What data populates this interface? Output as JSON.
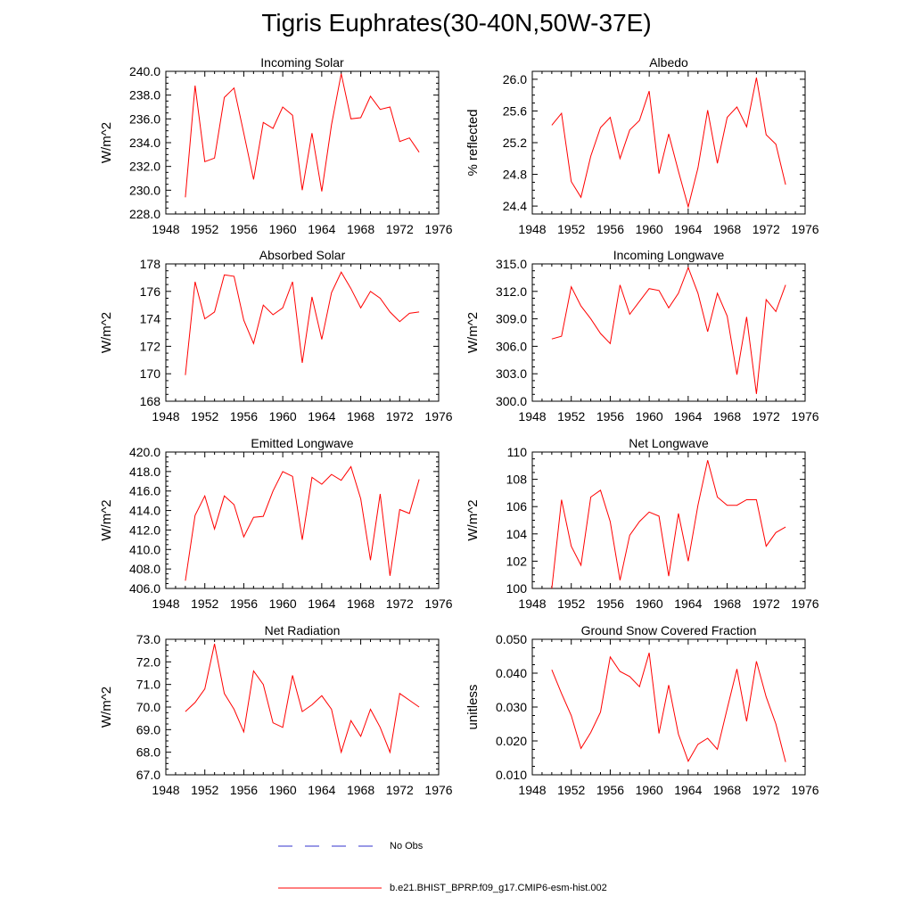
{
  "title": "Tigris Euphrates(30-40N,50W-37E)",
  "legend": {
    "obs_label": "No Obs",
    "obs_color": "#3333cc",
    "model_label": "b.e21.BHIST_BPRP.f09_g17.CMIP6-esm-hist.002",
    "model_color": "#ff0000"
  },
  "chart_data": [
    {
      "type": "line",
      "title": "Incoming Solar",
      "ylabel": "W/m^2",
      "xlim": [
        1948,
        1976
      ],
      "xticks": [
        "1948",
        "1952",
        "1956",
        "1960",
        "1964",
        "1968",
        "1972",
        "1976"
      ],
      "ylim": [
        228,
        240
      ],
      "yticks": [
        "228.0",
        "230.0",
        "232.0",
        "234.0",
        "236.0",
        "238.0",
        "240.0"
      ],
      "x": [
        1950,
        1951,
        1952,
        1953,
        1954,
        1955,
        1956,
        1957,
        1958,
        1959,
        1960,
        1961,
        1962,
        1963,
        1964,
        1965,
        1966,
        1967,
        1968,
        1969,
        1970,
        1971,
        1972,
        1973,
        1974
      ],
      "series": [
        {
          "values": [
            229.4,
            238.8,
            232.4,
            232.7,
            237.8,
            238.6,
            234.8,
            230.9,
            235.7,
            235.2,
            237.0,
            236.3,
            230.0,
            234.8,
            229.9,
            235.5,
            239.8,
            236.0,
            236.1,
            237.9,
            236.8,
            237.0,
            234.1,
            234.4,
            233.2
          ]
        }
      ]
    },
    {
      "type": "line",
      "title": "Albedo",
      "ylabel": "% reflected",
      "xlim": [
        1948,
        1976
      ],
      "xticks": [
        "1948",
        "1952",
        "1956",
        "1960",
        "1964",
        "1968",
        "1972",
        "1976"
      ],
      "ylim": [
        24.3,
        26.1
      ],
      "yticks": [
        "24.4",
        "24.8",
        "25.2",
        "25.6",
        "26.0"
      ],
      "ytick_values": [
        24.4,
        24.8,
        25.2,
        25.6,
        26.0
      ],
      "x": [
        1950,
        1951,
        1952,
        1953,
        1954,
        1955,
        1956,
        1957,
        1958,
        1959,
        1960,
        1961,
        1962,
        1963,
        1964,
        1965,
        1966,
        1967,
        1968,
        1969,
        1970,
        1971,
        1972,
        1973,
        1974
      ],
      "series": [
        {
          "values": [
            25.42,
            25.57,
            24.71,
            24.51,
            25.03,
            25.39,
            25.52,
            25.0,
            25.36,
            25.48,
            25.85,
            24.81,
            25.31,
            24.84,
            24.39,
            24.88,
            25.61,
            24.94,
            25.52,
            25.65,
            25.4,
            26.02,
            25.3,
            25.18,
            24.67
          ]
        }
      ]
    },
    {
      "type": "line",
      "title": "Absorbed Solar",
      "ylabel": "W/m^2",
      "xlim": [
        1948,
        1976
      ],
      "xticks": [
        "1948",
        "1952",
        "1956",
        "1960",
        "1964",
        "1968",
        "1972",
        "1976"
      ],
      "ylim": [
        168,
        178
      ],
      "yticks": [
        "168",
        "170",
        "172",
        "174",
        "176",
        "178"
      ],
      "x": [
        1950,
        1951,
        1952,
        1953,
        1954,
        1955,
        1956,
        1957,
        1958,
        1959,
        1960,
        1961,
        1962,
        1963,
        1964,
        1965,
        1966,
        1967,
        1968,
        1969,
        1970,
        1971,
        1972,
        1973,
        1974
      ],
      "series": [
        {
          "values": [
            169.9,
            176.7,
            174.0,
            174.5,
            177.2,
            177.1,
            173.9,
            172.2,
            175.0,
            174.3,
            174.8,
            176.7,
            170.8,
            175.6,
            172.5,
            175.9,
            177.4,
            176.2,
            174.8,
            176.0,
            175.5,
            174.5,
            173.8,
            174.4,
            174.5
          ]
        }
      ]
    },
    {
      "type": "line",
      "title": "Incoming Longwave",
      "ylabel": "W/m^2",
      "xlim": [
        1948,
        1976
      ],
      "xticks": [
        "1948",
        "1952",
        "1956",
        "1960",
        "1964",
        "1968",
        "1972",
        "1976"
      ],
      "ylim": [
        300,
        315
      ],
      "yticks": [
        "300.0",
        "303.0",
        "306.0",
        "309.0",
        "312.0",
        "315.0"
      ],
      "x": [
        1950,
        1951,
        1952,
        1953,
        1954,
        1955,
        1956,
        1957,
        1958,
        1959,
        1960,
        1961,
        1962,
        1963,
        1964,
        1965,
        1966,
        1967,
        1968,
        1969,
        1970,
        1971,
        1972,
        1973,
        1974
      ],
      "series": [
        {
          "values": [
            306.8,
            307.1,
            312.5,
            310.4,
            309.0,
            307.4,
            306.3,
            312.7,
            309.5,
            310.9,
            312.3,
            312.1,
            310.2,
            311.8,
            314.6,
            311.8,
            307.6,
            311.8,
            309.3,
            302.9,
            309.2,
            300.8,
            311.1,
            309.8,
            312.7
          ]
        }
      ]
    },
    {
      "type": "line",
      "title": "Emitted Longwave",
      "ylabel": "W/m^2",
      "xlim": [
        1948,
        1976
      ],
      "xticks": [
        "1948",
        "1952",
        "1956",
        "1960",
        "1964",
        "1968",
        "1972",
        "1976"
      ],
      "ylim": [
        406,
        420
      ],
      "yticks": [
        "406.0",
        "408.0",
        "410.0",
        "412.0",
        "414.0",
        "416.0",
        "418.0",
        "420.0"
      ],
      "x": [
        1950,
        1951,
        1952,
        1953,
        1954,
        1955,
        1956,
        1957,
        1958,
        1959,
        1960,
        1961,
        1962,
        1963,
        1964,
        1965,
        1966,
        1967,
        1968,
        1969,
        1970,
        1971,
        1972,
        1973,
        1974
      ],
      "series": [
        {
          "values": [
            406.8,
            413.5,
            415.5,
            412.1,
            415.5,
            414.6,
            411.3,
            413.3,
            413.4,
            416.0,
            418.0,
            417.5,
            411.0,
            417.4,
            416.7,
            417.7,
            417.1,
            418.5,
            415.2,
            408.9,
            415.7,
            407.3,
            414.1,
            413.7,
            417.2
          ]
        }
      ]
    },
    {
      "type": "line",
      "title": "Net Longwave",
      "ylabel": "W/m^2",
      "xlim": [
        1948,
        1976
      ],
      "xticks": [
        "1948",
        "1952",
        "1956",
        "1960",
        "1964",
        "1968",
        "1972",
        "1976"
      ],
      "ylim": [
        100,
        110
      ],
      "yticks": [
        "100",
        "102",
        "104",
        "106",
        "108",
        "110"
      ],
      "x": [
        1950,
        1951,
        1952,
        1953,
        1954,
        1955,
        1956,
        1957,
        1958,
        1959,
        1960,
        1961,
        1962,
        1963,
        1964,
        1965,
        1966,
        1967,
        1968,
        1969,
        1970,
        1971,
        1972,
        1973,
        1974
      ],
      "series": [
        {
          "values": [
            100.0,
            106.5,
            103.1,
            101.7,
            106.7,
            107.2,
            104.9,
            100.6,
            103.9,
            104.9,
            105.6,
            105.3,
            100.9,
            105.5,
            102.0,
            106.1,
            109.4,
            106.7,
            106.1,
            106.1,
            106.5,
            106.5,
            103.1,
            104.1,
            104.5
          ]
        }
      ]
    },
    {
      "type": "line",
      "title": "Net Radiation",
      "ylabel": "W/m^2",
      "xlim": [
        1948,
        1976
      ],
      "xticks": [
        "1948",
        "1952",
        "1956",
        "1960",
        "1964",
        "1968",
        "1972",
        "1976"
      ],
      "ylim": [
        67,
        73
      ],
      "yticks": [
        "67.0",
        "68.0",
        "69.0",
        "70.0",
        "71.0",
        "72.0",
        "73.0"
      ],
      "x": [
        1950,
        1951,
        1952,
        1953,
        1954,
        1955,
        1956,
        1957,
        1958,
        1959,
        1960,
        1961,
        1962,
        1963,
        1964,
        1965,
        1966,
        1967,
        1968,
        1969,
        1970,
        1971,
        1972,
        1973,
        1974
      ],
      "series": [
        {
          "values": [
            69.8,
            70.2,
            70.8,
            72.8,
            70.6,
            69.9,
            68.9,
            71.6,
            71.0,
            69.3,
            69.1,
            71.4,
            69.8,
            70.1,
            70.5,
            69.9,
            68.0,
            69.4,
            68.7,
            69.9,
            69.1,
            68.0,
            70.6,
            70.3,
            70.0
          ]
        }
      ]
    },
    {
      "type": "line",
      "title": "Ground Snow Covered Fraction",
      "ylabel": "unitless",
      "xlim": [
        1948,
        1976
      ],
      "xticks": [
        "1948",
        "1952",
        "1956",
        "1960",
        "1964",
        "1968",
        "1972",
        "1976"
      ],
      "ylim": [
        0.01,
        0.05
      ],
      "yticks": [
        "0.010",
        "0.020",
        "0.030",
        "0.040",
        "0.050"
      ],
      "x": [
        1950,
        1951,
        1952,
        1953,
        1954,
        1955,
        1956,
        1957,
        1958,
        1959,
        1960,
        1961,
        1962,
        1963,
        1964,
        1965,
        1966,
        1967,
        1968,
        1969,
        1970,
        1971,
        1972,
        1973,
        1974
      ],
      "series": [
        {
          "values": [
            0.041,
            0.034,
            0.0275,
            0.0178,
            0.0225,
            0.0285,
            0.0448,
            0.0405,
            0.039,
            0.036,
            0.046,
            0.0222,
            0.0365,
            0.022,
            0.014,
            0.019,
            0.0208,
            0.0175,
            0.0295,
            0.0412,
            0.0258,
            0.0435,
            0.033,
            0.025,
            0.0138
          ]
        }
      ]
    }
  ]
}
